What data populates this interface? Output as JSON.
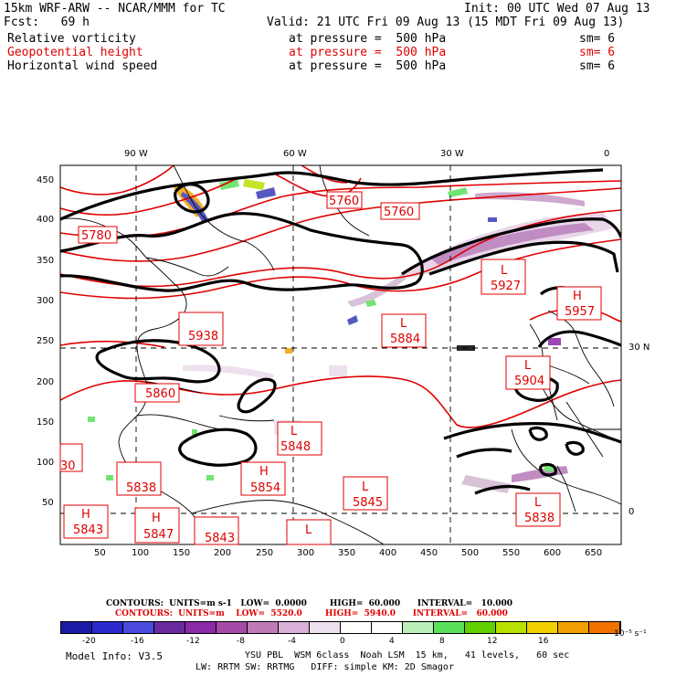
{
  "header": {
    "model": "15km WRF-ARW -- NCAR/MMM for TC",
    "init": "Init: 00 UTC Wed 07 Aug 13",
    "fcst": "Fcst:   69 h",
    "valid": "Valid: 21 UTC Fri 09 Aug 13 (15 MDT Fri 09 Aug 13)"
  },
  "fields": [
    {
      "name": "Relative vorticity",
      "level": "at pressure =  500 hPa",
      "sm": "sm= 6",
      "color": "#000000"
    },
    {
      "name": "Geopotential height",
      "level": "at pressure =  500 hPa",
      "sm": "sm= 6",
      "color": "#e00000"
    },
    {
      "name": "Horizontal wind speed",
      "level": "at pressure =  500 hPa",
      "sm": "sm= 6",
      "color": "#000000"
    }
  ],
  "map": {
    "top_labels": [
      "90 W",
      "60 W",
      "30 W",
      "0"
    ],
    "right_labels": [
      "30 N",
      "0"
    ],
    "x_ticks": [
      "50",
      "100",
      "150",
      "200",
      "250",
      "300",
      "350",
      "400",
      "450",
      "500",
      "550",
      "600",
      "650"
    ],
    "y_ticks": [
      "450",
      "400",
      "350",
      "300",
      "250",
      "200",
      "150",
      "100",
      "50"
    ],
    "colors": {
      "height_contour": "#e00000",
      "vorticity_contour": "#000000",
      "coast": "#000000"
    },
    "height_labels": [
      {
        "letter": "",
        "value": "5760"
      },
      {
        "letter": "",
        "value": "5760"
      },
      {
        "letter": "",
        "value": "5780"
      },
      {
        "letter": "L",
        "value": "5927"
      },
      {
        "letter": "H",
        "value": "5957"
      },
      {
        "letter": "",
        "value": "5938"
      },
      {
        "letter": "L",
        "value": "5884"
      },
      {
        "letter": "L",
        "value": "5904"
      },
      {
        "letter": "",
        "value": "5860"
      },
      {
        "letter": "L",
        "value": "5848"
      },
      {
        "letter": "",
        "value": "5838"
      },
      {
        "letter": "H",
        "value": "5854"
      },
      {
        "letter": "L",
        "value": "5845"
      },
      {
        "letter": "L",
        "value": "5838"
      },
      {
        "letter": "H",
        "value": "5843"
      },
      {
        "letter": "H",
        "value": "5847"
      },
      {
        "letter": "",
        "value": "5843"
      },
      {
        "letter": "L",
        "value": ""
      },
      {
        "letter": "",
        "value": "30"
      }
    ]
  },
  "contours": {
    "black": "CONTOURS:  UNITS=m s-1   LOW=  0.0000        HIGH=  60.000      INTERVAL=   10.000",
    "red": "CONTOURS:  UNITS=m    LOW=  5520.0        HIGH=  5940.0      INTERVAL=   60.000"
  },
  "colorbar": {
    "colors": [
      "#1a1aa6",
      "#2a2acc",
      "#4a4ae0",
      "#6a2aa0",
      "#8a2aa8",
      "#a64aa8",
      "#c07ab8",
      "#d8b0d8",
      "#ece0ec",
      "#ffffff",
      "#ffffff",
      "#b8f0b8",
      "#5ae05a",
      "#60d000",
      "#b8e000",
      "#f0d000",
      "#f0a000",
      "#f07000"
    ],
    "labels": [
      "-20",
      "-16",
      "-12",
      "-8",
      "-4",
      "0",
      "4",
      "8",
      "12",
      "16"
    ],
    "unit": "10⁻⁵ s⁻¹"
  },
  "footer": {
    "model_info": "Model Info: V3.5",
    "line1": "YSU PBL  WSM 6class  Noah LSM  15 km,   41 levels,   60 sec",
    "line2": "LW: RRTM SW: RRTMG   DIFF: simple KM: 2D Smagor"
  }
}
